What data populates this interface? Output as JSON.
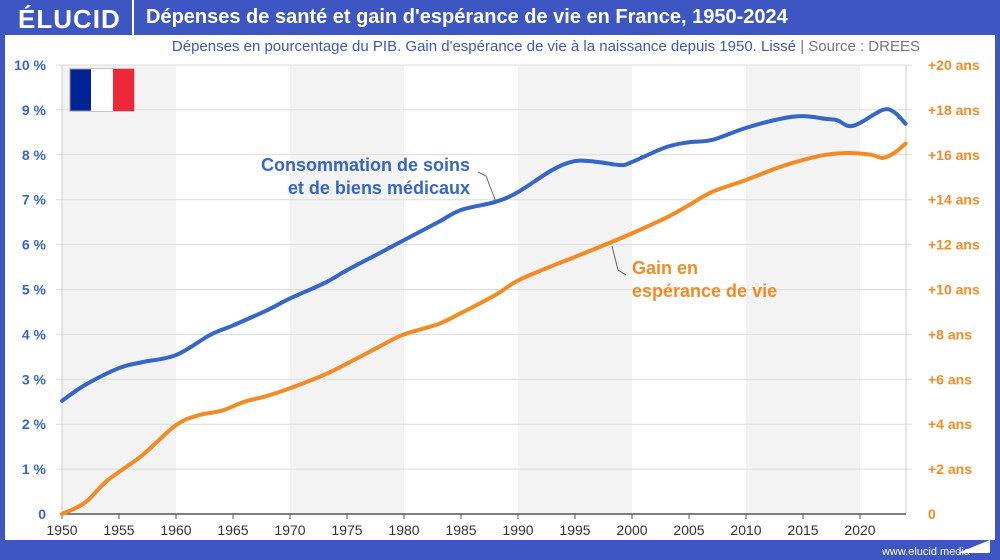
{
  "header": {
    "logo": "ÉLUCID",
    "title": "Dépenses de santé et gain d'espérance de vie en France, 1950-2024"
  },
  "subtitle": {
    "text": "Dépenses en pourcentage du PIB. Gain d'espérance de vie à la naissance depuis 1950. Lissé",
    "separator": "|",
    "source": "Source : DREES"
  },
  "footer": {
    "url": "www.elucid.media"
  },
  "flag": "france-flag",
  "colors": {
    "blue": "#3566c8",
    "orange": "#f28b25",
    "frame": "#3d56c2"
  },
  "chart_data": {
    "type": "line",
    "x_ticks": [
      "1950",
      "1955",
      "1960",
      "1965",
      "1970",
      "1975",
      "1980",
      "1985",
      "1990",
      "1995",
      "2000",
      "2005",
      "2010",
      "2015",
      "2020"
    ],
    "xlim": [
      1950,
      2024
    ],
    "y_left": {
      "ticks": [
        "0",
        "1 %",
        "2 %",
        "3 %",
        "4 %",
        "5 %",
        "6 %",
        "7 %",
        "8 %",
        "9 %",
        "10 %"
      ],
      "ylim": [
        0,
        10
      ]
    },
    "y_right": {
      "ticks": [
        "0",
        "+2 ans",
        "+4 ans",
        "+6 ans",
        "+8 ans",
        "+10 ans",
        "+12 ans",
        "+14 ans",
        "+16 ans",
        "+18 ans",
        "+20 ans"
      ],
      "ylim": [
        0,
        20
      ]
    },
    "grid": "horizontal",
    "shaded_decades": [
      [
        1950,
        1960
      ],
      [
        1970,
        1980
      ],
      [
        1990,
        2000
      ],
      [
        2010,
        2020
      ]
    ],
    "series": [
      {
        "name": "Consommation de soins et de biens médicaux",
        "name_lines": [
          "Consommation de soins",
          "et de biens médicaux"
        ],
        "axis": "left",
        "color": "#3566c8",
        "x": [
          1950,
          1952,
          1955,
          1957,
          1960,
          1963,
          1965,
          1968,
          1970,
          1973,
          1975,
          1978,
          1980,
          1983,
          1985,
          1988,
          1990,
          1993,
          1995,
          1997,
          1999,
          2000,
          2003,
          2005,
          2007,
          2010,
          2013,
          2015,
          2017,
          2018,
          2019,
          2020,
          2022,
          2023,
          2024
        ],
        "y": [
          2.52,
          2.87,
          3.25,
          3.38,
          3.54,
          3.99,
          4.2,
          4.54,
          4.8,
          5.14,
          5.43,
          5.83,
          6.1,
          6.5,
          6.77,
          6.95,
          7.17,
          7.66,
          7.86,
          7.84,
          7.77,
          7.84,
          8.17,
          8.28,
          8.33,
          8.6,
          8.8,
          8.86,
          8.8,
          8.77,
          8.64,
          8.71,
          9.0,
          8.95,
          8.69
        ]
      },
      {
        "name": "Gain en espérance de vie",
        "name_lines": [
          "Gain en",
          "espérance de vie"
        ],
        "axis": "right",
        "color": "#f28b25",
        "x": [
          1950,
          1952,
          1954,
          1957,
          1960,
          1962,
          1964,
          1966,
          1968,
          1970,
          1973,
          1975,
          1978,
          1980,
          1983,
          1985,
          1988,
          1990,
          1993,
          1995,
          1998,
          2000,
          2003,
          2005,
          2007,
          2010,
          2013,
          2015,
          2017,
          2019,
          2021,
          2022,
          2023,
          2024
        ],
        "y": [
          0,
          0.5,
          1.5,
          2.6,
          3.96,
          4.4,
          4.6,
          5.0,
          5.26,
          5.6,
          6.2,
          6.7,
          7.5,
          8.0,
          8.46,
          8.95,
          9.75,
          10.4,
          11.05,
          11.45,
          12.07,
          12.5,
          13.2,
          13.76,
          14.34,
          14.88,
          15.46,
          15.77,
          16.0,
          16.08,
          16.0,
          15.86,
          16.08,
          16.5
        ]
      }
    ]
  }
}
